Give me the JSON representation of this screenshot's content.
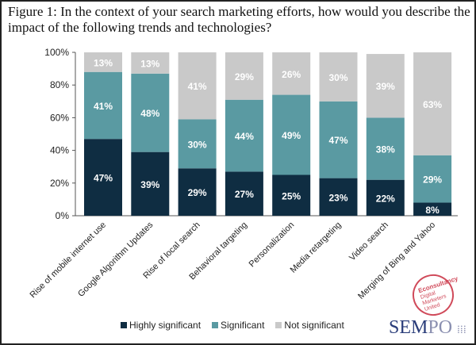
{
  "title": "Figure 1: In the context of your search marketing efforts, how would you describe the impact of the following trends and technologies?",
  "chart_data": {
    "type": "bar",
    "stacked": true,
    "categories": [
      "Rise of mobile internet use",
      "Google Algorithm Updates",
      "Rise of local search",
      "Behavioral targeting",
      "Personalization",
      "Media retargeting",
      "Video search",
      "Merging of Bing and Yahoo"
    ],
    "series": [
      {
        "name": "Highly significant",
        "color": "#0f2d42",
        "values": [
          47,
          39,
          29,
          27,
          25,
          23,
          22,
          8
        ]
      },
      {
        "name": "Significant",
        "color": "#5a9aa2",
        "values": [
          41,
          48,
          30,
          44,
          49,
          47,
          38,
          29
        ]
      },
      {
        "name": "Not significant",
        "color": "#c9c9c9",
        "values": [
          13,
          13,
          41,
          29,
          26,
          30,
          39,
          63
        ]
      }
    ],
    "yticks": [
      "0%",
      "20%",
      "40%",
      "60%",
      "80%",
      "100%"
    ],
    "ylim": [
      0,
      100
    ],
    "legend": "bottom",
    "grid": false
  },
  "logos": {
    "econsultancy": "Econsultancy Digital Marketers United",
    "sempo": "SEMPO"
  }
}
